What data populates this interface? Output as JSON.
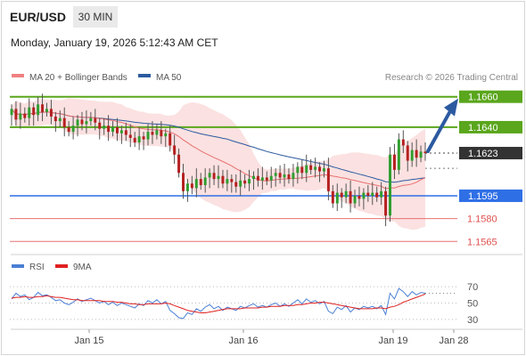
{
  "header": {
    "symbol": "EUR/USD",
    "timeframe": "30 MIN",
    "datetime": "Monday, January 19, 2026 5:12:43 AM CET"
  },
  "legend": {
    "items": [
      {
        "label": "MA 20 + Bollinger Bands",
        "color": "#f08080"
      },
      {
        "label": "MA 50",
        "color": "#2c5aa0"
      }
    ],
    "credit": "Research © 2026 Trading Central"
  },
  "rsi_legend": {
    "items": [
      {
        "label": "RSI",
        "color": "#4a7fd4"
      },
      {
        "label": "9MA",
        "color": "#e02020"
      }
    ]
  },
  "colors": {
    "resistance": "#5aa61c",
    "support": "#2f6fe6",
    "minor_level": "#e87070",
    "current_price_bg": "#333333",
    "arrow": "#2c5aa0",
    "bollinger_fill": "#fadcdc"
  },
  "chart_data": [
    {
      "type": "candlestick",
      "title": "EUR/USD",
      "x_ticks": [
        "Jan 15",
        "Jan 16",
        "Jan 19",
        "Jan 28"
      ],
      "ylim": [
        1.1557,
        1.1668
      ],
      "price_levels": [
        {
          "value": 1.166,
          "label": "1.1660",
          "kind": "resistance"
        },
        {
          "value": 1.164,
          "label": "1.1640",
          "kind": "resistance"
        },
        {
          "value": 1.1623,
          "label": "1.1623",
          "kind": "current"
        },
        {
          "value": 1.1595,
          "label": "1.1595",
          "kind": "support"
        },
        {
          "value": 1.158,
          "label": "1.1580",
          "kind": "minor"
        },
        {
          "value": 1.1565,
          "label": "1.1565",
          "kind": "minor"
        }
      ],
      "candles": [
        {
          "o": 1.1648,
          "c": 1.1652
        },
        {
          "o": 1.1652,
          "c": 1.1645
        },
        {
          "o": 1.1645,
          "c": 1.1649
        },
        {
          "o": 1.1649,
          "c": 1.1646
        },
        {
          "o": 1.1646,
          "c": 1.1653
        },
        {
          "o": 1.1653,
          "c": 1.1648
        },
        {
          "o": 1.1648,
          "c": 1.1655
        },
        {
          "o": 1.1655,
          "c": 1.165
        },
        {
          "o": 1.165,
          "c": 1.1652
        },
        {
          "o": 1.1652,
          "c": 1.1647
        },
        {
          "o": 1.1647,
          "c": 1.1644
        },
        {
          "o": 1.1644,
          "c": 1.1646
        },
        {
          "o": 1.1646,
          "c": 1.164
        },
        {
          "o": 1.164,
          "c": 1.1637
        },
        {
          "o": 1.1637,
          "c": 1.1641
        },
        {
          "o": 1.1641,
          "c": 1.1645
        },
        {
          "o": 1.1645,
          "c": 1.1642
        },
        {
          "o": 1.1642,
          "c": 1.1644
        },
        {
          "o": 1.1644,
          "c": 1.1646
        },
        {
          "o": 1.1646,
          "c": 1.1643
        },
        {
          "o": 1.1643,
          "c": 1.1639
        },
        {
          "o": 1.1639,
          "c": 1.1641
        },
        {
          "o": 1.1641,
          "c": 1.1637
        },
        {
          "o": 1.1637,
          "c": 1.164
        },
        {
          "o": 1.164,
          "c": 1.1636
        },
        {
          "o": 1.1636,
          "c": 1.1638
        },
        {
          "o": 1.1638,
          "c": 1.1635
        },
        {
          "o": 1.1635,
          "c": 1.1633
        },
        {
          "o": 1.1633,
          "c": 1.163
        },
        {
          "o": 1.163,
          "c": 1.1634
        },
        {
          "o": 1.1634,
          "c": 1.1632
        },
        {
          "o": 1.1632,
          "c": 1.1637
        },
        {
          "o": 1.1637,
          "c": 1.1635
        },
        {
          "o": 1.1635,
          "c": 1.1638
        },
        {
          "o": 1.1638,
          "c": 1.1634
        },
        {
          "o": 1.1634,
          "c": 1.1636
        },
        {
          "o": 1.1636,
          "c": 1.1628
        },
        {
          "o": 1.1628,
          "c": 1.1622
        },
        {
          "o": 1.1622,
          "c": 1.161
        },
        {
          "o": 1.161,
          "c": 1.1598
        },
        {
          "o": 1.1598,
          "c": 1.1603
        },
        {
          "o": 1.1603,
          "c": 1.16
        },
        {
          "o": 1.16,
          "c": 1.1606
        },
        {
          "o": 1.1606,
          "c": 1.1602
        },
        {
          "o": 1.1602,
          "c": 1.1607
        },
        {
          "o": 1.1607,
          "c": 1.161
        },
        {
          "o": 1.161,
          "c": 1.1606
        },
        {
          "o": 1.1606,
          "c": 1.1608
        },
        {
          "o": 1.1608,
          "c": 1.1603
        },
        {
          "o": 1.1603,
          "c": 1.1606
        },
        {
          "o": 1.1606,
          "c": 1.1604
        },
        {
          "o": 1.1604,
          "c": 1.1601
        },
        {
          "o": 1.1601,
          "c": 1.1605
        },
        {
          "o": 1.1605,
          "c": 1.1603
        },
        {
          "o": 1.1603,
          "c": 1.1606
        },
        {
          "o": 1.1606,
          "c": 1.1608
        },
        {
          "o": 1.1608,
          "c": 1.1605
        },
        {
          "o": 1.1605,
          "c": 1.1607
        },
        {
          "o": 1.1607,
          "c": 1.1605
        },
        {
          "o": 1.1605,
          "c": 1.1608
        },
        {
          "o": 1.1608,
          "c": 1.161
        },
        {
          "o": 1.161,
          "c": 1.1607
        },
        {
          "o": 1.1607,
          "c": 1.1609
        },
        {
          "o": 1.1609,
          "c": 1.1606
        },
        {
          "o": 1.1606,
          "c": 1.161
        },
        {
          "o": 1.161,
          "c": 1.1614
        },
        {
          "o": 1.1614,
          "c": 1.161
        },
        {
          "o": 1.161,
          "c": 1.1615
        },
        {
          "o": 1.1615,
          "c": 1.1612
        },
        {
          "o": 1.1612,
          "c": 1.1614
        },
        {
          "o": 1.1614,
          "c": 1.1611
        },
        {
          "o": 1.1611,
          "c": 1.1613
        },
        {
          "o": 1.1613,
          "c": 1.1598
        },
        {
          "o": 1.1598,
          "c": 1.159
        },
        {
          "o": 1.159,
          "c": 1.1597
        },
        {
          "o": 1.1597,
          "c": 1.1594
        },
        {
          "o": 1.1594,
          "c": 1.1598
        },
        {
          "o": 1.1598,
          "c": 1.159
        },
        {
          "o": 1.159,
          "c": 1.1595
        },
        {
          "o": 1.1595,
          "c": 1.1593
        },
        {
          "o": 1.1593,
          "c": 1.1597
        },
        {
          "o": 1.1597,
          "c": 1.1595
        },
        {
          "o": 1.1595,
          "c": 1.1597
        },
        {
          "o": 1.1597,
          "c": 1.1594
        },
        {
          "o": 1.1594,
          "c": 1.1598
        },
        {
          "o": 1.1598,
          "c": 1.1582
        },
        {
          "o": 1.1582,
          "c": 1.1622
        },
        {
          "o": 1.1622,
          "c": 1.1612
        },
        {
          "o": 1.1612,
          "c": 1.1632
        },
        {
          "o": 1.1632,
          "c": 1.1628
        },
        {
          "o": 1.1628,
          "c": 1.1618
        },
        {
          "o": 1.1618,
          "c": 1.1625
        },
        {
          "o": 1.1625,
          "c": 1.162
        },
        {
          "o": 1.162,
          "c": 1.1624
        },
        {
          "o": 1.1624,
          "c": 1.1623
        }
      ]
    },
    {
      "type": "line",
      "title": "RSI",
      "series": [
        {
          "name": "RSI"
        },
        {
          "name": "9MA"
        }
      ],
      "ylim": [
        20,
        80
      ],
      "y_ticks": [
        70,
        50,
        30
      ],
      "rsi": [
        55,
        62,
        58,
        60,
        54,
        57,
        63,
        59,
        60,
        57,
        53,
        54,
        50,
        48,
        51,
        55,
        52,
        54,
        56,
        53,
        50,
        52,
        48,
        51,
        47,
        50,
        48,
        46,
        44,
        49,
        47,
        53,
        50,
        54,
        49,
        52,
        41,
        37,
        32,
        31,
        38,
        36,
        43,
        40,
        45,
        48,
        43,
        46,
        41,
        45,
        43,
        41,
        46,
        44,
        47,
        49,
        45,
        47,
        45,
        48,
        50,
        46,
        49,
        46,
        50,
        54,
        49,
        55,
        51,
        53,
        49,
        52,
        40,
        37,
        45,
        42,
        47,
        39,
        44,
        42,
        46,
        44,
        46,
        43,
        47,
        36,
        62,
        55,
        68,
        64,
        58,
        64,
        60,
        63,
        62
      ],
      "ma9": [
        56,
        57,
        57,
        58,
        57,
        57,
        58,
        58,
        59,
        58,
        57,
        57,
        56,
        55,
        54,
        54,
        53,
        53,
        53,
        53,
        53,
        52,
        52,
        52,
        51,
        51,
        50,
        49,
        49,
        48,
        48,
        49,
        49,
        49,
        49,
        50,
        49,
        47,
        45,
        43,
        41,
        40,
        39,
        38,
        38,
        39,
        40,
        41,
        42,
        43,
        43,
        43,
        43,
        44,
        44,
        44,
        44,
        45,
        45,
        46,
        46,
        46,
        47,
        47,
        47,
        48,
        48,
        49,
        50,
        50,
        51,
        51,
        50,
        49,
        48,
        47,
        46,
        45,
        44,
        43,
        43,
        43,
        43,
        44,
        44,
        43,
        45,
        46,
        48,
        51,
        53,
        55,
        57,
        59,
        61
      ]
    }
  ]
}
